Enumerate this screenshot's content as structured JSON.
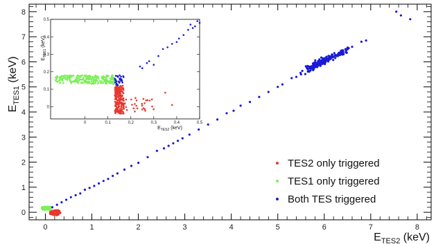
{
  "chart_data": {
    "type": "scatter",
    "xlabel": {
      "main": "E",
      "sub": "TES2",
      "unit": " (keV)"
    },
    "ylabel": {
      "main": "E",
      "sub": "TES1",
      "unit": " (keV)"
    },
    "xlim": [
      -0.35,
      8.3
    ],
    "ylim": [
      -0.3,
      8.3
    ],
    "x_ticks": [
      0,
      1,
      2,
      3,
      4,
      5,
      6,
      7,
      8
    ],
    "y_ticks": [
      0,
      1,
      2,
      3,
      4,
      5,
      6,
      7,
      8
    ],
    "grid": false,
    "legend": {
      "placement": "bottom-right"
    },
    "series": [
      {
        "name": "TES2 only triggered",
        "color": "#e8382f",
        "clusters": [
          {
            "x_range": [
              0.1,
              0.32
            ],
            "y_range": [
              -0.12,
              0.08
            ],
            "count": 60
          }
        ]
      },
      {
        "name": "TES1 only triggered",
        "color": "#7cf05a",
        "clusters": [
          {
            "x_range": [
              -0.08,
              0.12
            ],
            "y_range": [
              0.1,
              0.22
            ],
            "count": 70
          }
        ]
      },
      {
        "name": "Both TES triggered",
        "color": "#1a1ad6",
        "diagonal_points": [
          [
            0.15,
            0.2
          ],
          [
            0.25,
            0.3
          ],
          [
            0.35,
            0.4
          ],
          [
            0.45,
            0.5
          ],
          [
            0.55,
            0.6
          ],
          [
            0.65,
            0.68
          ],
          [
            0.75,
            0.75
          ],
          [
            0.85,
            0.9
          ],
          [
            0.95,
            0.97
          ],
          [
            1.05,
            1.05
          ],
          [
            1.15,
            1.15
          ],
          [
            1.25,
            1.25
          ],
          [
            1.35,
            1.33
          ],
          [
            1.45,
            1.45
          ],
          [
            1.55,
            1.55
          ],
          [
            1.7,
            1.7
          ],
          [
            1.85,
            1.85
          ],
          [
            2.0,
            1.97
          ],
          [
            2.2,
            2.2
          ],
          [
            2.4,
            2.45
          ],
          [
            2.55,
            2.55
          ],
          [
            2.65,
            2.65
          ],
          [
            2.75,
            2.75
          ],
          [
            2.85,
            2.85
          ],
          [
            2.95,
            2.95
          ],
          [
            3.1,
            3.1
          ],
          [
            3.3,
            3.3
          ],
          [
            3.5,
            3.5
          ],
          [
            3.7,
            3.7
          ],
          [
            3.9,
            3.95
          ],
          [
            4.05,
            4.05
          ],
          [
            4.2,
            4.25
          ],
          [
            4.4,
            4.4
          ],
          [
            4.6,
            4.6
          ],
          [
            4.8,
            4.8
          ],
          [
            5.0,
            5.0
          ],
          [
            5.1,
            5.1
          ],
          [
            5.3,
            5.35
          ],
          [
            5.4,
            5.4
          ],
          [
            5.5,
            5.5
          ],
          [
            6.2,
            6.2
          ],
          [
            6.4,
            6.35
          ],
          [
            6.6,
            6.6
          ],
          [
            6.8,
            6.8
          ],
          [
            6.9,
            6.85
          ],
          [
            7.55,
            8.0
          ],
          [
            7.65,
            7.85
          ],
          [
            7.85,
            7.7
          ]
        ],
        "clusters": [
          {
            "center": [
              5.9,
              5.95
            ],
            "spread": [
              0.28,
              0.16
            ],
            "count": 130
          },
          {
            "center": [
              6.35,
              6.35
            ],
            "spread": [
              0.18,
              0.12
            ],
            "count": 40
          }
        ]
      }
    ],
    "inset": {
      "xlim": [
        -0.15,
        0.5
      ],
      "ylim": [
        -0.07,
        0.5
      ],
      "x_ticks": [
        0,
        0.1,
        0.2,
        0.3,
        0.4,
        0.5
      ],
      "x_tick_labels": [
        "0",
        "0.1",
        "0.2",
        "0.3",
        "0.4",
        "0.5"
      ],
      "y_ticks": [
        0,
        0.1,
        0.2,
        0.3,
        0.4,
        0.5
      ],
      "y_tick_labels": [
        "0",
        "0.1",
        "0.2",
        "0.3",
        "0.4",
        "0.5"
      ],
      "xlabel": {
        "main": "E",
        "sub": "TES2",
        "unit": " (keV)"
      },
      "ylabel": {
        "main": "E",
        "sub": "TES1",
        "unit": " (keV)"
      },
      "clusters": [
        {
          "series": "TES1 only triggered",
          "x_range": [
            -0.13,
            0.13
          ],
          "y_range": [
            0.13,
            0.18
          ],
          "count": 260
        },
        {
          "series": "TES2 only triggered",
          "x_range": [
            0.13,
            0.17
          ],
          "y_range": [
            -0.04,
            0.12
          ],
          "count": 200
        },
        {
          "series": "TES2 only triggered",
          "x_range": [
            0.17,
            0.3
          ],
          "y_range": [
            -0.03,
            0.05
          ],
          "count": 25
        },
        {
          "series": "Both TES triggered",
          "x_range": [
            0.13,
            0.17
          ],
          "y_range": [
            0.12,
            0.18
          ],
          "count": 30
        }
      ],
      "points": [
        {
          "series": "Both TES triggered",
          "xy": [
            [
              0.24,
              0.23
            ],
            [
              0.25,
              0.22
            ],
            [
              0.27,
              0.25
            ],
            [
              0.28,
              0.26
            ],
            [
              0.3,
              0.24
            ],
            [
              0.32,
              0.29
            ],
            [
              0.34,
              0.33
            ],
            [
              0.36,
              0.34
            ],
            [
              0.38,
              0.36
            ],
            [
              0.4,
              0.37
            ],
            [
              0.41,
              0.39
            ],
            [
              0.43,
              0.41
            ],
            [
              0.45,
              0.44
            ],
            [
              0.46,
              0.47
            ],
            [
              0.47,
              0.45
            ],
            [
              0.48,
              0.46
            ],
            [
              0.49,
              0.49
            ],
            [
              0.5,
              0.48
            ]
          ]
        },
        {
          "series": "TES2 only triggered",
          "xy": [
            [
              0.22,
              0.05
            ],
            [
              0.26,
              0.02
            ],
            [
              0.35,
              0.08
            ],
            [
              0.38,
              0.01
            ]
          ]
        }
      ]
    }
  }
}
